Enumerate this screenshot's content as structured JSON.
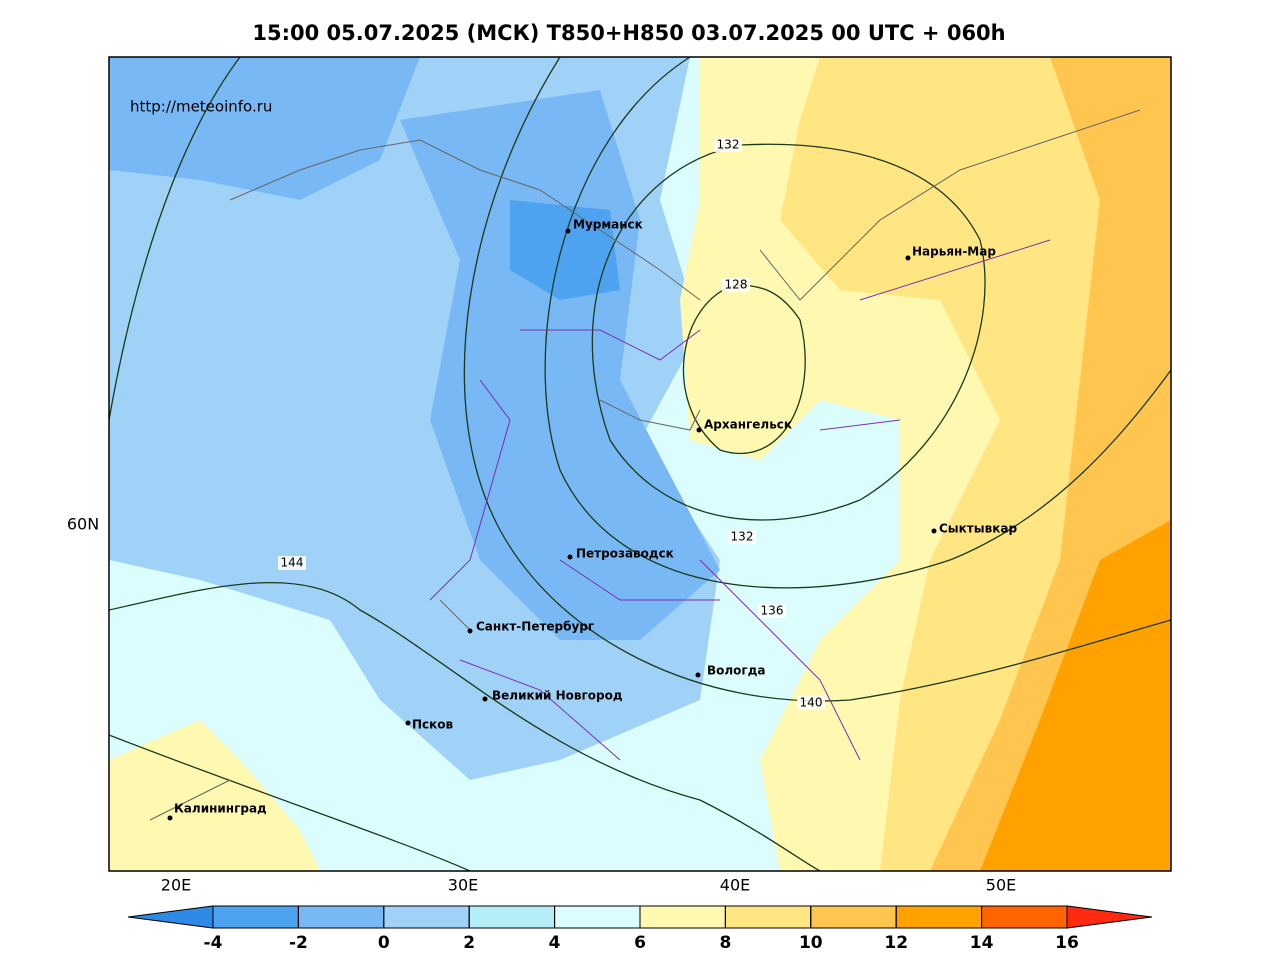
{
  "title": "15:00 05.07.2025 (МСК) T850+H850 03.07.2025 00 UTC + 060h",
  "source": "http://meteoinfo.ru",
  "lon_labels": [
    "20E",
    "30E",
    "40E",
    "50E"
  ],
  "lat_labels": [
    "60N"
  ],
  "cities": [
    "Мурманск",
    "Нарьян-Мар",
    "Архангельск",
    "Сыктывкар",
    "Петрозаводск",
    "Санкт-Петербург",
    "Вологда",
    "Великий Новгород",
    "Псков",
    "Калининград"
  ],
  "contour_labels": [
    132,
    128,
    132,
    144,
    136,
    140
  ],
  "colorbar": {
    "ticks": [
      -4,
      -2,
      0,
      2,
      4,
      6,
      8,
      10,
      12,
      14,
      16
    ],
    "colors": [
      "#2f8ae6",
      "#4ea3f0",
      "#78b8f4",
      "#a0d2f8",
      "#b6eef8",
      "#dcfdfd",
      "#fff8b0",
      "#ffe682",
      "#ffc54e",
      "#ffa200",
      "#ff6400",
      "#ff2a10"
    ]
  }
}
